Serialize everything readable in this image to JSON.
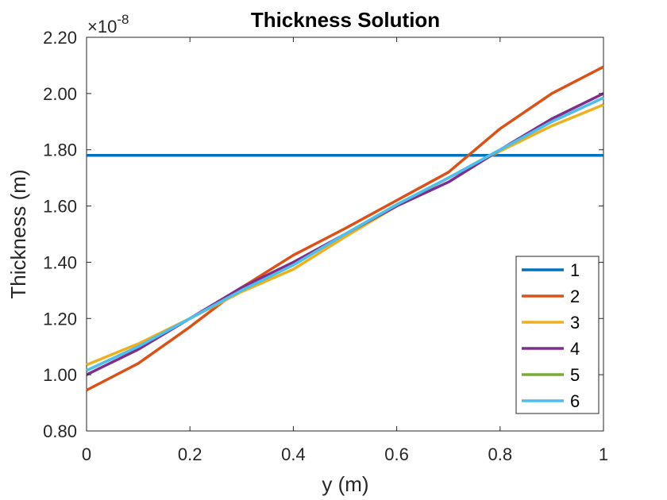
{
  "chart_data": {
    "type": "line",
    "title": "Thickness Solution",
    "xlabel": "y (m)",
    "ylabel": "Thickness (m)",
    "y_multiplier": {
      "prefix": "×10",
      "exponent": "-8"
    },
    "xlim": [
      0,
      1
    ],
    "ylim": [
      0.8,
      2.2
    ],
    "x_ticks": [
      0,
      0.2,
      0.4,
      0.6,
      0.8,
      1
    ],
    "x_tick_labels": [
      "0",
      "0.2",
      "0.4",
      "0.6",
      "0.8",
      "1"
    ],
    "y_ticks": [
      0.8,
      1.0,
      1.2,
      1.4,
      1.6,
      1.8,
      2.0,
      2.2
    ],
    "y_tick_labels": [
      "0.80",
      "1.00",
      "1.20",
      "1.40",
      "1.60",
      "1.80",
      "2.00",
      "2.20"
    ],
    "grid": false,
    "legend_position": "bottom-right",
    "x": [
      0,
      0.1,
      0.2,
      0.3,
      0.4,
      0.5,
      0.6,
      0.7,
      0.8,
      0.9,
      1.0
    ],
    "series": [
      {
        "name": "1",
        "color": "#0072BD",
        "values": [
          1.78,
          1.78,
          1.78,
          1.78,
          1.78,
          1.78,
          1.78,
          1.78,
          1.78,
          1.78,
          1.78
        ]
      },
      {
        "name": "2",
        "color": "#D95319",
        "values": [
          0.945,
          1.04,
          1.17,
          1.31,
          1.425,
          1.52,
          1.62,
          1.72,
          1.875,
          2.0,
          2.095
        ]
      },
      {
        "name": "3",
        "color": "#EDB120",
        "values": [
          1.035,
          1.11,
          1.2,
          1.295,
          1.375,
          1.49,
          1.6,
          1.7,
          1.795,
          1.885,
          1.96
        ]
      },
      {
        "name": "4",
        "color": "#7E2F8E",
        "values": [
          1.0,
          1.09,
          1.2,
          1.31,
          1.4,
          1.5,
          1.6,
          1.685,
          1.8,
          1.91,
          2.0
        ]
      },
      {
        "name": "5",
        "color": "#77AC30",
        "values": [
          1.015,
          1.1,
          1.2,
          1.3,
          1.39,
          1.5,
          1.605,
          1.7,
          1.8,
          1.9,
          1.985
        ]
      },
      {
        "name": "6",
        "color": "#4DBEEE",
        "values": [
          1.015,
          1.1,
          1.2,
          1.3,
          1.39,
          1.5,
          1.605,
          1.7,
          1.8,
          1.9,
          1.985
        ]
      }
    ]
  }
}
